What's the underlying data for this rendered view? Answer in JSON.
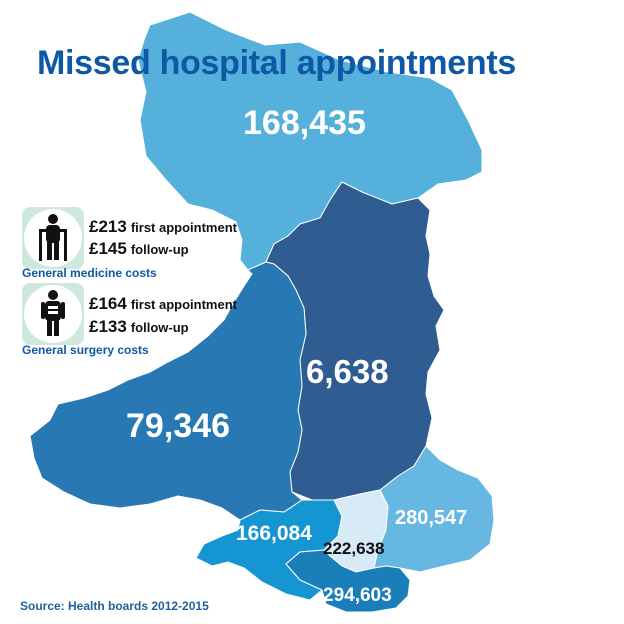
{
  "title": "Missed hospital appointments",
  "regions": [
    {
      "id": "north",
      "value": "168,435",
      "color": "#55b0dc"
    },
    {
      "id": "mid-powys",
      "value": "6,638",
      "color": "#2f5d91"
    },
    {
      "id": "west",
      "value": "79,346",
      "color": "#2878b4"
    },
    {
      "id": "south-east",
      "value": "280,547",
      "color": "#66b8e2"
    },
    {
      "id": "south-west",
      "value": "166,084",
      "color": "#1695d3"
    },
    {
      "id": "cardiff",
      "value": "222,638",
      "color": "#d6ebf5"
    },
    {
      "id": "vale",
      "value": "294,603",
      "color": "#1a7eb9"
    }
  ],
  "costs": {
    "general_medicine": {
      "icon": "person-with-crutches-icon",
      "first_amount": "£213",
      "first_label": "first appointment",
      "followup_amount": "£145",
      "followup_label": "follow-up",
      "caption": "General medicine costs"
    },
    "general_surgery": {
      "icon": "person-with-bandage-icon",
      "first_amount": "£164",
      "first_label": "first appointment",
      "followup_amount": "£133",
      "followup_label": "follow-up",
      "caption": "General surgery costs"
    }
  },
  "source": "Source: Health boards 2012-2015",
  "colors": {
    "title": "#0f58a5",
    "caption": "#0f58a5",
    "icon_frame": "#cfe8dd"
  }
}
